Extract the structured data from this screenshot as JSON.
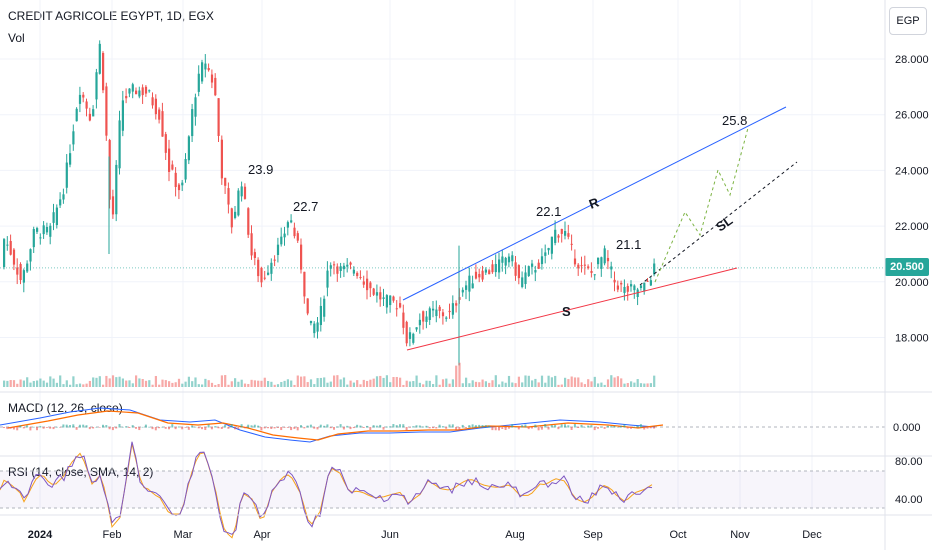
{
  "header": {
    "title": "CREDIT AGRICOLE EGYPT, 1D, EGX",
    "volume_label": "Vol",
    "currency": "EGP"
  },
  "price_axis": {
    "ticks": [
      "28.000",
      "26.000",
      "24.000",
      "22.000",
      "20.000",
      "18.000"
    ],
    "last_price": "20.500"
  },
  "macd": {
    "label": "MACD (12, 26, close)",
    "axis_tick": "0.000"
  },
  "rsi": {
    "label": "RSI (14, close, SMA, 14, 2)",
    "axis_ticks": [
      "80.00",
      "40.00"
    ]
  },
  "time_axis": [
    "2024",
    "Feb",
    "Mar",
    "Apr",
    "Jun",
    "Aug",
    "Sep",
    "Oct",
    "Nov",
    "Dec"
  ],
  "annotations": [
    "23.9",
    "22.7",
    "22.1",
    "21.1",
    "25.8",
    "R",
    "S",
    "SL"
  ],
  "colors": {
    "up": "#26a69a",
    "down": "#ef5350",
    "resistance": "#2962ff",
    "support": "#f23645",
    "macd_line": "#2962ff",
    "signal_line": "#ff6d00",
    "rsi_line": "#7e57c2",
    "rsi_sma": "#f7a21b"
  },
  "chart_data": {
    "type": "line",
    "title": "CREDIT AGRICOLE EGYPT, 1D, EGX",
    "ylabel": "EGP",
    "ylim": [
      17.0,
      29.5
    ],
    "x": [
      "2024",
      "Feb",
      "Mar",
      "Apr",
      "Jun",
      "Aug",
      "Sep",
      "Oct"
    ],
    "series": [
      {
        "values": [
          21.5,
          27.5,
          26.5,
          21.0,
          19.2,
          21.0,
          20.5,
          20.5
        ]
      }
    ],
    "levels": [
      {
        "label": "23.9"
      },
      {
        "label": "22.7"
      },
      {
        "label": "22.1"
      },
      {
        "label": "21.1"
      },
      {
        "label": "25.8"
      }
    ],
    "trendlines": [
      {
        "label": "R",
        "from": [
          18.6,
          19.3
        ],
        "to": [
          26.2,
          26.2
        ]
      },
      {
        "label": "S",
        "from": [
          17.5,
          17.5
        ],
        "to": [
          20.4,
          20.4
        ]
      }
    ]
  }
}
